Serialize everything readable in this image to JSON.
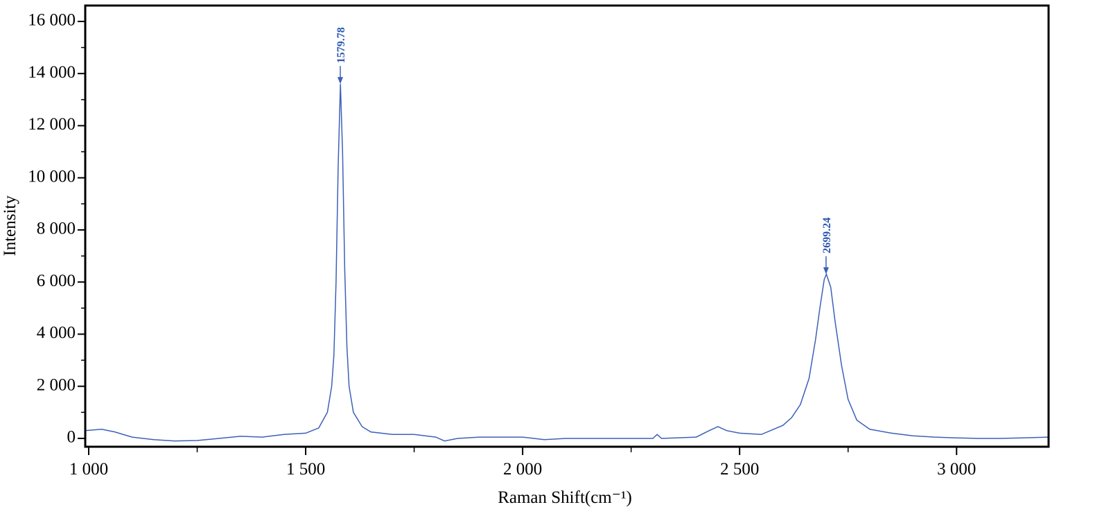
{
  "chart_data": {
    "type": "line",
    "x_label": "Raman Shift(cm⁻¹)",
    "y_label": "Intensity",
    "xlim": [
      992,
      3212
    ],
    "ylim": [
      -320,
      16610
    ],
    "xticks": [
      {
        "value": 1000,
        "label": "1 000"
      },
      {
        "value": 1500,
        "label": "1 500"
      },
      {
        "value": 2000,
        "label": "2 000"
      },
      {
        "value": 2500,
        "label": "2 500"
      },
      {
        "value": 3000,
        "label": "3 000"
      }
    ],
    "yticks": [
      0,
      {
        "value": 2000,
        "label": "2 000"
      },
      {
        "value": 4000,
        "label": "4 000"
      },
      {
        "value": 6000,
        "label": "6 000"
      },
      {
        "value": 8000,
        "label": "8 000"
      },
      {
        "value": 10000,
        "label": "10 000"
      },
      {
        "value": 12000,
        "label": "12 000"
      },
      {
        "value": 14000,
        "label": "14 000"
      },
      {
        "value": 16000,
        "label": "16 000"
      }
    ],
    "xminorticks": [
      1250,
      1750,
      2250,
      2750
    ],
    "yminorticks": [
      1000,
      3000,
      5000,
      7000,
      9000,
      11000,
      13000,
      15000
    ],
    "series": [
      {
        "color": "#3c5fb8",
        "x": [
          992,
          1030,
          1060,
          1100,
          1150,
          1200,
          1250,
          1300,
          1350,
          1400,
          1450,
          1500,
          1530,
          1550,
          1560,
          1565,
          1570,
          1575,
          1580,
          1585,
          1590,
          1595,
          1600,
          1610,
          1630,
          1650,
          1700,
          1750,
          1800,
          1820,
          1850,
          1900,
          2000,
          2050,
          2100,
          2200,
          2300,
          2310,
          2320,
          2400,
          2430,
          2450,
          2470,
          2500,
          2550,
          2600,
          2620,
          2640,
          2660,
          2675,
          2685,
          2695,
          2700,
          2710,
          2720,
          2735,
          2750,
          2770,
          2800,
          2850,
          2900,
          2950,
          3000,
          3050,
          3100,
          3150,
          3212
        ],
        "values": [
          300,
          350,
          250,
          50,
          -50,
          -100,
          -80,
          0,
          80,
          50,
          150,
          200,
          400,
          1000,
          2000,
          3200,
          6000,
          10500,
          13600,
          11000,
          6500,
          3500,
          2000,
          1000,
          450,
          250,
          150,
          150,
          50,
          -100,
          0,
          50,
          50,
          -50,
          0,
          0,
          0,
          150,
          0,
          50,
          300,
          450,
          300,
          200,
          150,
          500,
          800,
          1300,
          2300,
          3800,
          5000,
          6100,
          6300,
          5800,
          4500,
          2800,
          1500,
          700,
          350,
          200,
          100,
          50,
          20,
          0,
          0,
          20,
          50
        ]
      }
    ],
    "annotations": [
      {
        "label": "1579.78",
        "x": 1579.78,
        "y": 13600
      },
      {
        "label": "2699.24",
        "x": 2699.24,
        "y": 6300
      }
    ]
  }
}
